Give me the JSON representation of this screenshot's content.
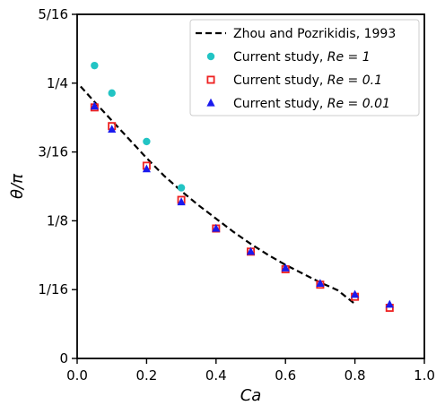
{
  "chart_data": {
    "type": "scatter",
    "title": "",
    "xlabel": "Ca",
    "ylabel": "θ/π",
    "xlim": [
      0.0,
      1.0
    ],
    "ylim": [
      0.0,
      0.3125
    ],
    "grid": false,
    "legend_position": "top-right",
    "xticks": [
      {
        "value": 0.0,
        "label": "0.0"
      },
      {
        "value": 0.2,
        "label": "0.2"
      },
      {
        "value": 0.4,
        "label": "0.4"
      },
      {
        "value": 0.6,
        "label": "0.6"
      },
      {
        "value": 0.8,
        "label": "0.8"
      },
      {
        "value": 1.0,
        "label": "1.0"
      }
    ],
    "yticks": [
      {
        "value": 0.0,
        "label": "0"
      },
      {
        "value": 0.0625,
        "label": "1/16"
      },
      {
        "value": 0.125,
        "label": "1/8"
      },
      {
        "value": 0.1875,
        "label": "3/16"
      },
      {
        "value": 0.25,
        "label": "1/4"
      },
      {
        "value": 0.3125,
        "label": "5/16"
      }
    ],
    "series": [
      {
        "name": "Zhou and Pozrikidis, 1993",
        "legend_prefix": "Zhou and Pozrikidis, 1993",
        "legend_math": "",
        "kind": "line",
        "color": "#000000",
        "marker": "none",
        "x": [
          0.01,
          0.05,
          0.1,
          0.15,
          0.2,
          0.25,
          0.3,
          0.35,
          0.4,
          0.45,
          0.5,
          0.55,
          0.6,
          0.65,
          0.7,
          0.75,
          0.8
        ],
        "y": [
          0.247,
          0.233,
          0.216,
          0.199,
          0.182,
          0.166,
          0.152,
          0.139,
          0.127,
          0.115,
          0.104,
          0.094,
          0.085,
          0.077,
          0.069,
          0.062,
          0.0495
        ]
      },
      {
        "name": "Current study, Re = 1",
        "legend_prefix": "Current study, ",
        "legend_math": "Re = 1",
        "kind": "scatter",
        "color": "#22c4c4",
        "marker": "circle",
        "x": [
          0.05,
          0.1,
          0.2,
          0.3
        ],
        "y": [
          0.266,
          0.241,
          0.197,
          0.155
        ]
      },
      {
        "name": "Current study, Re = 0.1",
        "legend_prefix": "Current study, ",
        "legend_math": "Re = 0.1",
        "kind": "scatter",
        "color": "#ee2222",
        "marker": "square",
        "x": [
          0.05,
          0.1,
          0.2,
          0.3,
          0.4,
          0.5,
          0.6,
          0.7,
          0.8,
          0.9
        ],
        "y": [
          0.228,
          0.211,
          0.175,
          0.144,
          0.118,
          0.097,
          0.081,
          0.067,
          0.056,
          0.046
        ]
      },
      {
        "name": "Current study, Re = 0.01",
        "legend_prefix": "Current study, ",
        "legend_math": "Re = 0.01",
        "kind": "scatter",
        "color": "#1a1aee",
        "marker": "triangle",
        "x": [
          0.05,
          0.1,
          0.2,
          0.3,
          0.4,
          0.5,
          0.6,
          0.7,
          0.8,
          0.9
        ],
        "y": [
          0.229,
          0.208,
          0.172,
          0.142,
          0.118,
          0.097,
          0.082,
          0.068,
          0.058,
          0.049
        ]
      }
    ]
  }
}
